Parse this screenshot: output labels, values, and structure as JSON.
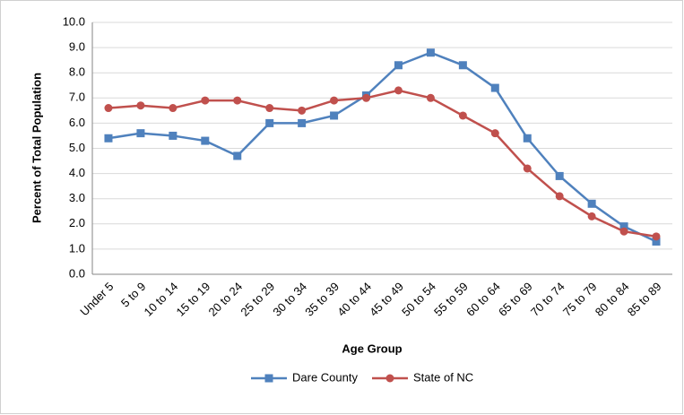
{
  "chart_data": {
    "type": "line",
    "xlabel": "Age Group",
    "ylabel": "Percent of Total Population",
    "categories": [
      "Under 5",
      "5 to 9",
      "10 to 14",
      "15 to 19",
      "20 to 24",
      "25 to 29",
      "30 to 34",
      "35 to 39",
      "40 to 44",
      "45 to 49",
      "50 to 54",
      "55 to 59",
      "60 to 64",
      "65 to 69",
      "70 to 74",
      "75 to 79",
      "80 to 84",
      "85 to 89"
    ],
    "series": [
      {
        "name": "Dare County",
        "color": "#4f81bd",
        "marker": "square",
        "values": [
          5.4,
          5.6,
          5.5,
          5.3,
          4.7,
          6.0,
          6.0,
          6.3,
          7.1,
          8.3,
          8.8,
          8.3,
          7.4,
          5.4,
          3.9,
          2.8,
          1.9,
          1.3
        ]
      },
      {
        "name": "State of NC",
        "color": "#c0504d",
        "marker": "circle",
        "values": [
          6.6,
          6.7,
          6.6,
          6.9,
          6.9,
          6.6,
          6.5,
          6.9,
          7.0,
          7.3,
          7.0,
          6.3,
          5.6,
          4.2,
          3.1,
          2.3,
          1.7,
          1.5
        ]
      }
    ],
    "ylim": [
      0,
      10
    ],
    "yticks": [
      {
        "value": 0,
        "label": "0.0"
      },
      {
        "value": 1,
        "label": "1.0"
      },
      {
        "value": 2,
        "label": "2.0"
      },
      {
        "value": 3,
        "label": "3.0"
      },
      {
        "value": 4,
        "label": "4.0"
      },
      {
        "value": 5,
        "label": "5.0"
      },
      {
        "value": 6,
        "label": "6.0"
      },
      {
        "value": 7,
        "label": "7.0"
      },
      {
        "value": 8,
        "label": "8.0"
      },
      {
        "value": 9,
        "label": "9.0"
      },
      {
        "value": 10,
        "label": "10.0"
      }
    ],
    "grid": true,
    "legend": "bottom"
  }
}
